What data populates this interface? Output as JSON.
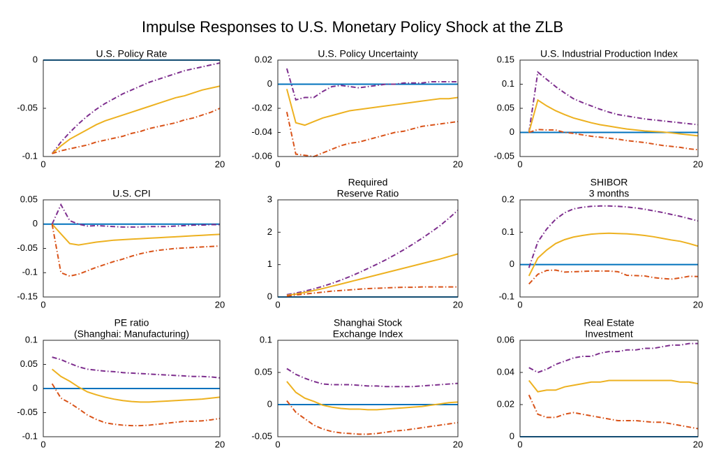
{
  "title": "Impulse Responses to U.S. Monetary Policy Shock at the ZLB",
  "chart_data": [
    {
      "type": "line",
      "title": [
        "U.S. Policy Rate"
      ],
      "x": [
        1,
        2,
        3,
        4,
        5,
        6,
        7,
        8,
        9,
        10,
        11,
        12,
        13,
        14,
        15,
        16,
        17,
        18,
        19,
        20
      ],
      "xlim": [
        0,
        20
      ],
      "xticks": [
        0,
        20
      ],
      "ylim": [
        -0.1,
        0
      ],
      "yticks": [
        -0.1,
        -0.05,
        0
      ],
      "zero_line": {
        "value": 0,
        "color": "#0072bd"
      },
      "series": [
        {
          "color": "#7e2f8e",
          "dash": "7,3,1.5,3",
          "values": [
            -0.097,
            -0.085,
            -0.075,
            -0.066,
            -0.058,
            -0.051,
            -0.045,
            -0.04,
            -0.035,
            -0.031,
            -0.027,
            -0.023,
            -0.02,
            -0.017,
            -0.014,
            -0.011,
            -0.009,
            -0.007,
            -0.005,
            -0.003
          ]
        },
        {
          "color": "#edb120",
          "dash": "none",
          "values": [
            -0.097,
            -0.089,
            -0.082,
            -0.077,
            -0.072,
            -0.067,
            -0.063,
            -0.06,
            -0.057,
            -0.054,
            -0.051,
            -0.048,
            -0.045,
            -0.042,
            -0.039,
            -0.037,
            -0.034,
            -0.031,
            -0.029,
            -0.027
          ]
        },
        {
          "color": "#d95319",
          "dash": "7,3,1.5,3",
          "values": [
            -0.097,
            -0.094,
            -0.092,
            -0.09,
            -0.088,
            -0.085,
            -0.083,
            -0.081,
            -0.079,
            -0.076,
            -0.074,
            -0.071,
            -0.069,
            -0.067,
            -0.065,
            -0.062,
            -0.06,
            -0.057,
            -0.054,
            -0.05
          ]
        }
      ]
    },
    {
      "type": "line",
      "title": [
        "U.S. Policy Uncertainty"
      ],
      "x": [
        1,
        2,
        3,
        4,
        5,
        6,
        7,
        8,
        9,
        10,
        11,
        12,
        13,
        14,
        15,
        16,
        17,
        18,
        19,
        20
      ],
      "xlim": [
        0,
        20
      ],
      "xticks": [
        0,
        20
      ],
      "ylim": [
        -0.06,
        0.02
      ],
      "yticks": [
        -0.06,
        -0.04,
        -0.02,
        0,
        0.02
      ],
      "zero_line": {
        "value": 0,
        "color": "#0072bd"
      },
      "series": [
        {
          "color": "#7e2f8e",
          "dash": "7,3,1.5,3",
          "values": [
            0.013,
            -0.013,
            -0.011,
            -0.011,
            -0.006,
            -0.002,
            -0.001,
            -0.002,
            -0.003,
            -0.002,
            -0.001,
            0,
            0,
            0.001,
            0.001,
            0.001,
            0.002,
            0.002,
            0.002,
            0.002
          ]
        },
        {
          "color": "#edb120",
          "dash": "none",
          "values": [
            -0.004,
            -0.032,
            -0.034,
            -0.031,
            -0.028,
            -0.026,
            -0.024,
            -0.022,
            -0.021,
            -0.02,
            -0.019,
            -0.018,
            -0.017,
            -0.016,
            -0.015,
            -0.014,
            -0.013,
            -0.012,
            -0.012,
            -0.011
          ]
        },
        {
          "color": "#d95319",
          "dash": "7,3,1.5,3",
          "values": [
            -0.023,
            -0.058,
            -0.059,
            -0.06,
            -0.057,
            -0.054,
            -0.051,
            -0.049,
            -0.048,
            -0.046,
            -0.044,
            -0.042,
            -0.04,
            -0.039,
            -0.037,
            -0.035,
            -0.034,
            -0.033,
            -0.032,
            -0.031
          ]
        }
      ]
    },
    {
      "type": "line",
      "title": [
        "U.S. Industrial Production Index"
      ],
      "x": [
        1,
        2,
        3,
        4,
        5,
        6,
        7,
        8,
        9,
        10,
        11,
        12,
        13,
        14,
        15,
        16,
        17,
        18,
        19,
        20
      ],
      "xlim": [
        0,
        20
      ],
      "xticks": [
        0,
        20
      ],
      "ylim": [
        -0.05,
        0.15
      ],
      "yticks": [
        -0.05,
        0,
        0.05,
        0.1,
        0.15
      ],
      "zero_line": {
        "value": 0,
        "color": "#0072bd"
      },
      "series": [
        {
          "color": "#7e2f8e",
          "dash": "7,3,1.5,3",
          "values": [
            0,
            0.125,
            0.11,
            0.095,
            0.082,
            0.07,
            0.062,
            0.055,
            0.048,
            0.042,
            0.037,
            0.034,
            0.031,
            0.028,
            0.026,
            0.024,
            0.022,
            0.02,
            0.018,
            0.016
          ]
        },
        {
          "color": "#edb120",
          "dash": "none",
          "values": [
            0,
            0.067,
            0.055,
            0.045,
            0.037,
            0.03,
            0.025,
            0.02,
            0.016,
            0.013,
            0.01,
            0.007,
            0.005,
            0.003,
            0.002,
            0.001,
            -0.001,
            -0.003,
            -0.005,
            -0.007
          ]
        },
        {
          "color": "#d95319",
          "dash": "7,3,1.5,3",
          "values": [
            0,
            0.006,
            0.005,
            0.005,
            0,
            -0.002,
            -0.005,
            -0.008,
            -0.01,
            -0.012,
            -0.014,
            -0.017,
            -0.019,
            -0.021,
            -0.024,
            -0.027,
            -0.029,
            -0.031,
            -0.034,
            -0.036
          ]
        }
      ]
    },
    {
      "type": "line",
      "title": [
        "U.S. CPI"
      ],
      "x": [
        1,
        2,
        3,
        4,
        5,
        6,
        7,
        8,
        9,
        10,
        11,
        12,
        13,
        14,
        15,
        16,
        17,
        18,
        19,
        20
      ],
      "xlim": [
        0,
        20
      ],
      "xticks": [
        0,
        20
      ],
      "ylim": [
        -0.15,
        0.05
      ],
      "yticks": [
        -0.15,
        -0.1,
        -0.05,
        0,
        0.05
      ],
      "zero_line": {
        "value": 0,
        "color": "#0072bd"
      },
      "series": [
        {
          "color": "#7e2f8e",
          "dash": "7,3,1.5,3",
          "values": [
            0,
            0.04,
            0.007,
            0,
            -0.004,
            -0.003,
            -0.004,
            -0.005,
            -0.006,
            -0.006,
            -0.006,
            -0.005,
            -0.005,
            -0.005,
            -0.004,
            -0.003,
            -0.002,
            -0.002,
            -0.001,
            -0.001
          ]
        },
        {
          "color": "#edb120",
          "dash": "none",
          "values": [
            0,
            -0.02,
            -0.04,
            -0.043,
            -0.04,
            -0.037,
            -0.035,
            -0.033,
            -0.032,
            -0.031,
            -0.03,
            -0.029,
            -0.028,
            -0.027,
            -0.026,
            -0.025,
            -0.024,
            -0.023,
            -0.022,
            -0.021
          ]
        },
        {
          "color": "#d95319",
          "dash": "7,3,1.5,3",
          "values": [
            0,
            -0.1,
            -0.107,
            -0.103,
            -0.096,
            -0.089,
            -0.083,
            -0.077,
            -0.072,
            -0.066,
            -0.061,
            -0.057,
            -0.054,
            -0.052,
            -0.05,
            -0.049,
            -0.048,
            -0.047,
            -0.046,
            -0.045
          ]
        }
      ]
    },
    {
      "type": "line",
      "title": [
        "Required",
        "Reserve Ratio"
      ],
      "x": [
        1,
        2,
        3,
        4,
        5,
        6,
        7,
        8,
        9,
        10,
        11,
        12,
        13,
        14,
        15,
        16,
        17,
        18,
        19,
        20
      ],
      "xlim": [
        0,
        20
      ],
      "xticks": [
        0,
        20
      ],
      "ylim": [
        0,
        3
      ],
      "yticks": [
        0,
        1,
        2,
        3
      ],
      "zero_line": {
        "value": 0,
        "color": "#0072bd"
      },
      "series": [
        {
          "color": "#7e2f8e",
          "dash": "7,3,1.5,3",
          "values": [
            0.07,
            0.12,
            0.18,
            0.25,
            0.33,
            0.42,
            0.52,
            0.63,
            0.75,
            0.88,
            1.01,
            1.15,
            1.3,
            1.46,
            1.63,
            1.81,
            2.0,
            2.2,
            2.43,
            2.68
          ]
        },
        {
          "color": "#edb120",
          "dash": "none",
          "values": [
            0.05,
            0.09,
            0.14,
            0.2,
            0.26,
            0.33,
            0.4,
            0.47,
            0.54,
            0.61,
            0.68,
            0.75,
            0.82,
            0.89,
            0.96,
            1.03,
            1.1,
            1.17,
            1.25,
            1.33
          ]
        },
        {
          "color": "#d95319",
          "dash": "7,3,1.5,3",
          "values": [
            0.03,
            0.06,
            0.09,
            0.12,
            0.15,
            0.18,
            0.2,
            0.22,
            0.24,
            0.26,
            0.27,
            0.28,
            0.29,
            0.3,
            0.3,
            0.31,
            0.31,
            0.31,
            0.31,
            0.31
          ]
        }
      ]
    },
    {
      "type": "line",
      "title": [
        "SHIBOR",
        "3 months"
      ],
      "x": [
        1,
        2,
        3,
        4,
        5,
        6,
        7,
        8,
        9,
        10,
        11,
        12,
        13,
        14,
        15,
        16,
        17,
        18,
        19,
        20
      ],
      "xlim": [
        0,
        20
      ],
      "xticks": [
        0,
        20
      ],
      "ylim": [
        -0.1,
        0.2
      ],
      "yticks": [
        -0.1,
        0,
        0.1,
        0.2
      ],
      "zero_line": {
        "value": 0,
        "color": "#0072bd"
      },
      "series": [
        {
          "color": "#7e2f8e",
          "dash": "7,3,1.5,3",
          "values": [
            -0.01,
            0.07,
            0.11,
            0.14,
            0.16,
            0.172,
            0.177,
            0.18,
            0.181,
            0.181,
            0.18,
            0.178,
            0.175,
            0.171,
            0.166,
            0.161,
            0.155,
            0.149,
            0.142,
            0.135
          ]
        },
        {
          "color": "#edb120",
          "dash": "none",
          "values": [
            -0.035,
            0.02,
            0.045,
            0.065,
            0.077,
            0.085,
            0.09,
            0.094,
            0.096,
            0.097,
            0.096,
            0.095,
            0.093,
            0.09,
            0.086,
            0.081,
            0.076,
            0.072,
            0.065,
            0.057
          ]
        },
        {
          "color": "#d95319",
          "dash": "7,3,1.5,3",
          "values": [
            -0.06,
            -0.03,
            -0.018,
            -0.017,
            -0.023,
            -0.022,
            -0.021,
            -0.02,
            -0.02,
            -0.02,
            -0.022,
            -0.033,
            -0.034,
            -0.035,
            -0.04,
            -0.043,
            -0.045,
            -0.041,
            -0.036,
            -0.037
          ]
        }
      ]
    },
    {
      "type": "line",
      "title": [
        "PE ratio",
        "(Shanghai: Manufacturing)"
      ],
      "x": [
        1,
        2,
        3,
        4,
        5,
        6,
        7,
        8,
        9,
        10,
        11,
        12,
        13,
        14,
        15,
        16,
        17,
        18,
        19,
        20
      ],
      "xlim": [
        0,
        20
      ],
      "xticks": [
        0,
        20
      ],
      "ylim": [
        -0.1,
        0.1
      ],
      "yticks": [
        -0.1,
        -0.05,
        0,
        0.05,
        0.1
      ],
      "zero_line": {
        "value": 0,
        "color": "#0072bd"
      },
      "series": [
        {
          "color": "#7e2f8e",
          "dash": "7,3,1.5,3",
          "values": [
            0.065,
            0.06,
            0.052,
            0.045,
            0.04,
            0.038,
            0.036,
            0.035,
            0.033,
            0.032,
            0.031,
            0.03,
            0.029,
            0.028,
            0.027,
            0.026,
            0.025,
            0.025,
            0.024,
            0.022
          ]
        },
        {
          "color": "#edb120",
          "dash": "none",
          "values": [
            0.04,
            0.025,
            0.015,
            0.003,
            -0.007,
            -0.013,
            -0.018,
            -0.022,
            -0.025,
            -0.027,
            -0.028,
            -0.028,
            -0.027,
            -0.026,
            -0.025,
            -0.024,
            -0.023,
            -0.022,
            -0.02,
            -0.018
          ]
        },
        {
          "color": "#d95319",
          "dash": "7,3,1.5,3",
          "values": [
            0.01,
            -0.02,
            -0.03,
            -0.042,
            -0.055,
            -0.064,
            -0.071,
            -0.074,
            -0.076,
            -0.077,
            -0.077,
            -0.076,
            -0.074,
            -0.072,
            -0.07,
            -0.068,
            -0.068,
            -0.067,
            -0.065,
            -0.062
          ]
        }
      ]
    },
    {
      "type": "line",
      "title": [
        "Shanghai Stock",
        "Exchange Index"
      ],
      "x": [
        1,
        2,
        3,
        4,
        5,
        6,
        7,
        8,
        9,
        10,
        11,
        12,
        13,
        14,
        15,
        16,
        17,
        18,
        19,
        20
      ],
      "xlim": [
        0,
        20
      ],
      "xticks": [
        0,
        20
      ],
      "ylim": [
        -0.05,
        0.1
      ],
      "yticks": [
        -0.05,
        0,
        0.05,
        0.1
      ],
      "zero_line": {
        "value": 0,
        "color": "#0072bd"
      },
      "series": [
        {
          "color": "#7e2f8e",
          "dash": "7,3,1.5,3",
          "values": [
            0.056,
            0.047,
            0.041,
            0.036,
            0.032,
            0.031,
            0.031,
            0.031,
            0.03,
            0.029,
            0.029,
            0.028,
            0.028,
            0.028,
            0.028,
            0.029,
            0.03,
            0.031,
            0.032,
            0.033
          ]
        },
        {
          "color": "#edb120",
          "dash": "none",
          "values": [
            0.036,
            0.019,
            0.01,
            0.005,
            -0.001,
            -0.004,
            -0.006,
            -0.007,
            -0.007,
            -0.008,
            -0.008,
            -0.007,
            -0.006,
            -0.005,
            -0.004,
            -0.003,
            -0.001,
            0.001,
            0.003,
            0.004
          ]
        },
        {
          "color": "#d95319",
          "dash": "7,3,1.5,3",
          "values": [
            0.006,
            -0.012,
            -0.022,
            -0.032,
            -0.038,
            -0.042,
            -0.044,
            -0.045,
            -0.046,
            -0.046,
            -0.045,
            -0.043,
            -0.041,
            -0.04,
            -0.038,
            -0.036,
            -0.034,
            -0.032,
            -0.03,
            -0.028
          ]
        }
      ]
    },
    {
      "type": "line",
      "title": [
        "Real Estate",
        "Investment"
      ],
      "x": [
        1,
        2,
        3,
        4,
        5,
        6,
        7,
        8,
        9,
        10,
        11,
        12,
        13,
        14,
        15,
        16,
        17,
        18,
        19,
        20
      ],
      "xlim": [
        0,
        20
      ],
      "xticks": [
        0,
        20
      ],
      "ylim": [
        0,
        0.06
      ],
      "yticks": [
        0,
        0.02,
        0.04,
        0.06
      ],
      "zero_line": {
        "value": 0,
        "color": "#0072bd"
      },
      "series": [
        {
          "color": "#7e2f8e",
          "dash": "7,3,1.5,3",
          "values": [
            0.043,
            0.04,
            0.042,
            0.045,
            0.047,
            0.049,
            0.05,
            0.05,
            0.052,
            0.053,
            0.053,
            0.054,
            0.054,
            0.055,
            0.055,
            0.056,
            0.057,
            0.057,
            0.058,
            0.058
          ]
        },
        {
          "color": "#edb120",
          "dash": "none",
          "values": [
            0.035,
            0.028,
            0.029,
            0.029,
            0.031,
            0.032,
            0.033,
            0.034,
            0.034,
            0.035,
            0.035,
            0.035,
            0.035,
            0.035,
            0.035,
            0.035,
            0.035,
            0.034,
            0.034,
            0.033
          ]
        },
        {
          "color": "#d95319",
          "dash": "7,3,1.5,3",
          "values": [
            0.026,
            0.014,
            0.012,
            0.012,
            0.014,
            0.015,
            0.014,
            0.013,
            0.012,
            0.011,
            0.01,
            0.01,
            0.01,
            0.0095,
            0.009,
            0.009,
            0.008,
            0.007,
            0.006,
            0.005
          ]
        }
      ]
    }
  ]
}
